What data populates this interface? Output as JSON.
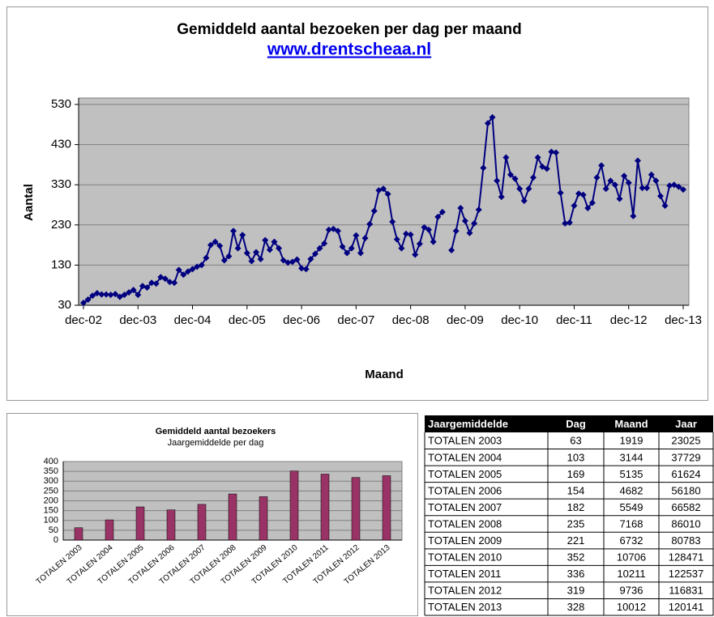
{
  "chart_data": [
    {
      "type": "line",
      "title": "Gemiddeld aantal bezoeken per dag per maand",
      "subtitle": "www.drentscheaa.nl",
      "y_label": "Aantal",
      "x_label": "Maand",
      "categories": [
        "dec-02",
        null,
        null,
        null,
        null,
        null,
        null,
        null,
        null,
        null,
        null,
        null,
        "dec-03",
        null,
        null,
        null,
        null,
        null,
        null,
        null,
        null,
        null,
        null,
        null,
        "dec-04",
        null,
        null,
        null,
        null,
        null,
        null,
        null,
        null,
        null,
        null,
        null,
        "dec-05",
        null,
        null,
        null,
        null,
        null,
        null,
        null,
        null,
        null,
        null,
        null,
        "dec-06",
        null,
        null,
        null,
        null,
        null,
        null,
        null,
        null,
        null,
        null,
        null,
        "dec-07",
        null,
        null,
        null,
        null,
        null,
        null,
        null,
        null,
        null,
        null,
        null,
        "dec-08",
        null,
        null,
        null,
        null,
        null,
        null,
        null,
        null,
        null,
        null,
        null,
        "dec-09",
        null,
        null,
        null,
        null,
        null,
        null,
        null,
        null,
        null,
        null,
        null,
        "dec-10",
        null,
        null,
        null,
        null,
        null,
        null,
        null,
        null,
        null,
        null,
        null,
        "dec-11",
        null,
        null,
        null,
        null,
        null,
        null,
        null,
        null,
        null,
        null,
        null,
        "dec-12",
        null,
        null,
        null,
        null,
        null,
        null,
        null,
        null,
        null,
        null,
        null,
        "dec-13"
      ],
      "values": [
        36,
        44,
        54,
        60,
        57,
        57,
        56,
        58,
        51,
        56,
        62,
        68,
        56,
        78,
        74,
        86,
        84,
        100,
        96,
        88,
        86,
        118,
        106,
        114,
        120,
        126,
        130,
        148,
        180,
        188,
        178,
        142,
        152,
        215,
        172,
        205,
        160,
        140,
        162,
        145,
        192,
        168,
        188,
        172,
        142,
        136,
        138,
        144,
        122,
        120,
        145,
        158,
        172,
        184,
        218,
        220,
        215,
        176,
        160,
        172,
        204,
        160,
        197,
        232,
        265,
        316,
        320,
        307,
        238,
        194,
        172,
        208,
        206,
        156,
        183,
        224,
        218,
        188,
        250,
        262,
        null,
        167,
        215,
        272,
        240,
        210,
        234,
        268,
        372,
        483,
        498,
        340,
        300,
        398,
        355,
        345,
        320,
        290,
        320,
        348,
        398,
        375,
        370,
        412,
        410,
        310,
        234,
        236,
        278,
        308,
        305,
        272,
        285,
        348,
        378,
        320,
        340,
        330,
        295,
        352,
        335,
        252,
        390,
        322,
        322,
        355,
        340,
        302,
        278,
        328,
        330,
        325,
        318
      ],
      "color": "#000080",
      "ylim": [
        30,
        530
      ],
      "yticks": [
        30,
        130,
        230,
        330,
        430,
        530
      ],
      "grid": true
    },
    {
      "type": "bar",
      "title": "Gemiddeld aantal bezoekers",
      "subtitle": "Jaargemiddelde per dag",
      "categories": [
        "TOTALEN 2003",
        "TOTALEN 2004",
        "TOTALEN 2005",
        "TOTALEN 2006",
        "TOTALEN 2007",
        "TOTALEN 2008",
        "TOTALEN 2009",
        "TOTALEN 2010",
        "TOTALEN 2011",
        "TOTALEN 2012",
        "TOTALEN 2013"
      ],
      "values": [
        63,
        103,
        169,
        154,
        182,
        235,
        221,
        352,
        336,
        319,
        328
      ],
      "color": "#993366",
      "ylim": [
        0,
        400
      ],
      "yticks": [
        0,
        50,
        100,
        150,
        200,
        250,
        300,
        350,
        400
      ],
      "grid": true
    }
  ],
  "table": {
    "header": [
      "Jaargemiddelde",
      "Dag",
      "Maand",
      "Jaar"
    ],
    "rows": [
      [
        "TOTALEN 2003",
        63,
        1919,
        23025
      ],
      [
        "TOTALEN 2004",
        103,
        3144,
        37729
      ],
      [
        "TOTALEN 2005",
        169,
        5135,
        61624
      ],
      [
        "TOTALEN 2006",
        154,
        4682,
        56180
      ],
      [
        "TOTALEN 2007",
        182,
        5549,
        66582
      ],
      [
        "TOTALEN 2008",
        235,
        7168,
        86010
      ],
      [
        "TOTALEN 2009",
        221,
        6732,
        80783
      ],
      [
        "TOTALEN 2010",
        352,
        10706,
        128471
      ],
      [
        "TOTALEN 2011",
        336,
        10211,
        122537
      ],
      [
        "TOTALEN 2012",
        319,
        9736,
        116831
      ],
      [
        "TOTALEN 2013",
        328,
        10012,
        120141
      ]
    ]
  }
}
